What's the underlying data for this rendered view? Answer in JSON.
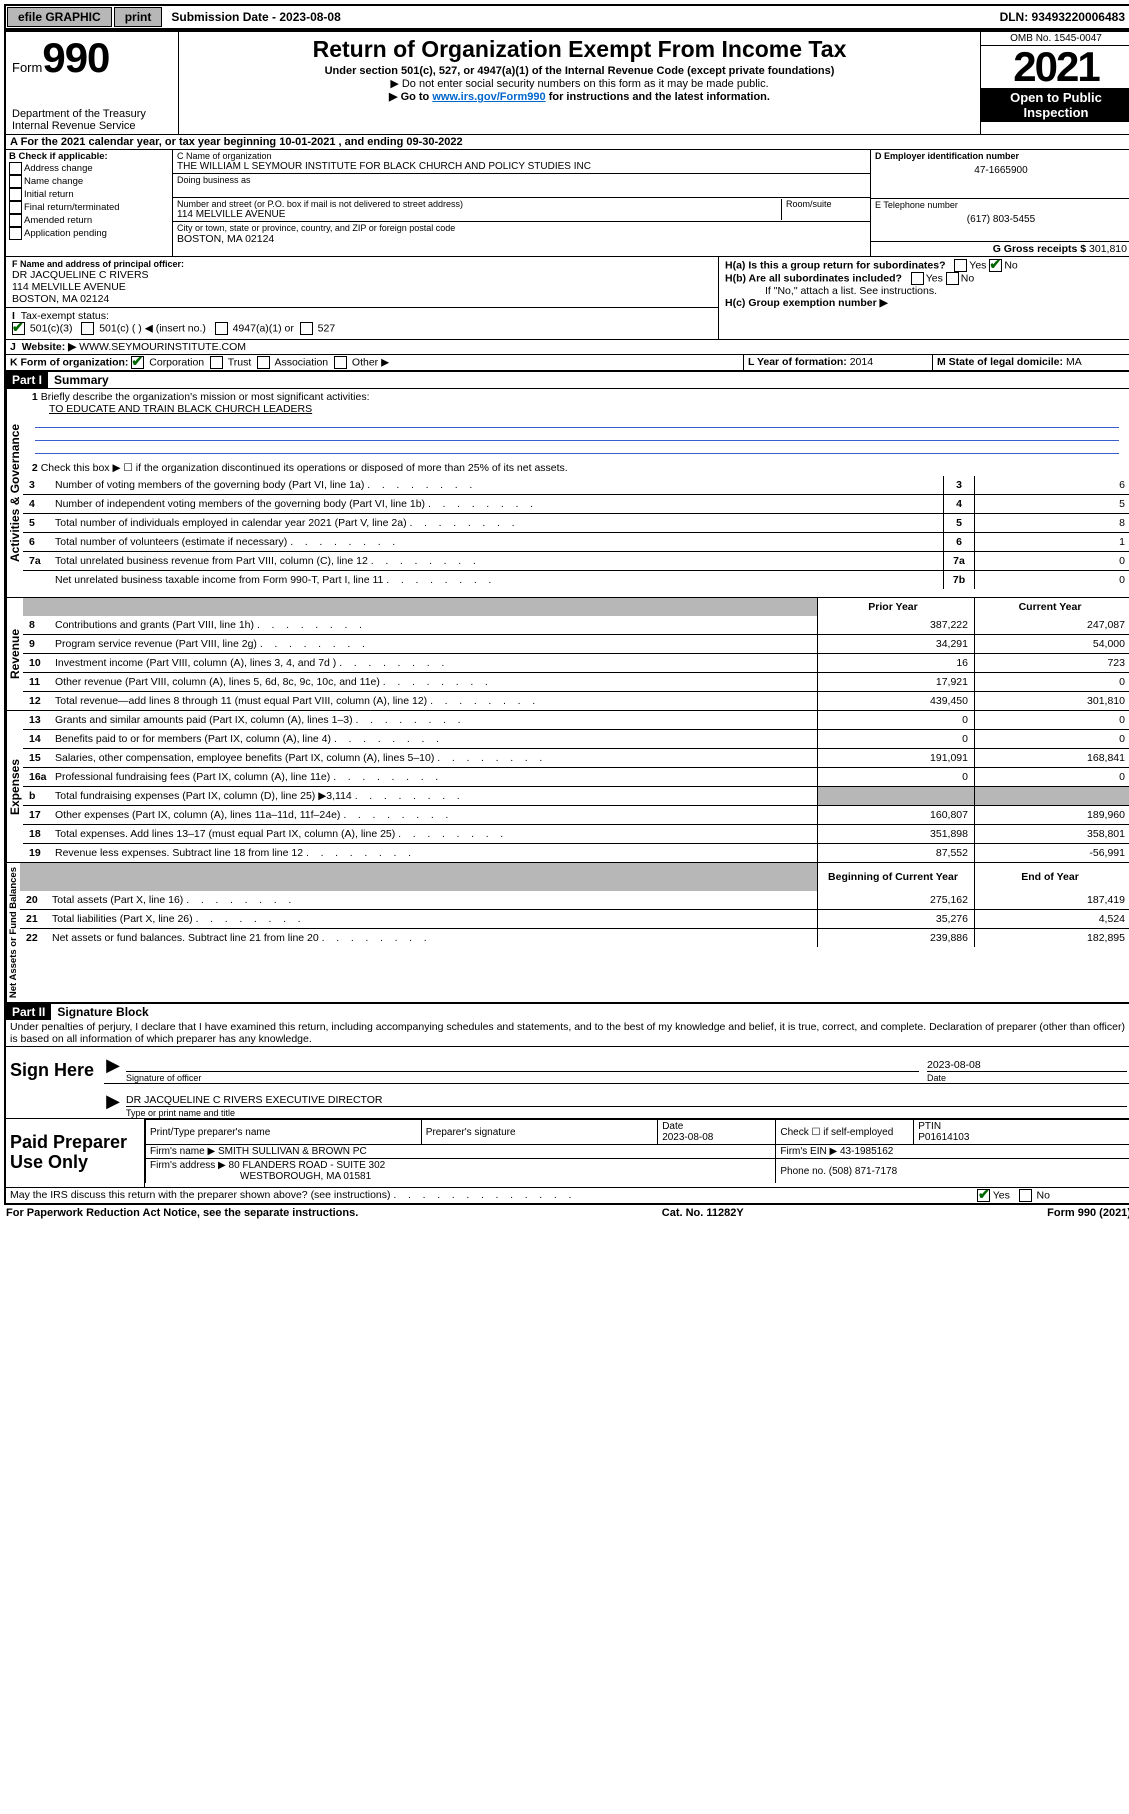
{
  "topbar": {
    "efile": "efile GRAPHIC",
    "print": "print",
    "sub_date_label": "Submission Date - 2023-08-08",
    "dln": "DLN: 93493220006483"
  },
  "header": {
    "form_label": "Form",
    "form_number": "990",
    "dept": "Department of the Treasury",
    "irs": "Internal Revenue Service",
    "title": "Return of Organization Exempt From Income Tax",
    "subtitle": "Under section 501(c), 527, or 4947(a)(1) of the Internal Revenue Code (except private foundations)",
    "note1": "▶ Do not enter social security numbers on this form as it may be made public.",
    "note2_pre": "▶ Go to ",
    "note2_link": "www.irs.gov/Form990",
    "note2_post": " for instructions and the latest information.",
    "omb": "OMB No. 1545-0047",
    "year": "2021",
    "open": "Open to Public Inspection"
  },
  "line_a": "For the 2021 calendar year, or tax year beginning 10-01-2021    , and ending 09-30-2022",
  "box_b": {
    "heading": "B Check if applicable:",
    "items": [
      "Address change",
      "Name change",
      "Initial return",
      "Final return/terminated",
      "Amended return",
      "Application pending"
    ]
  },
  "box_c": {
    "name_label": "C Name of organization",
    "name": "THE WILLIAM L SEYMOUR INSTITUTE FOR BLACK CHURCH AND POLICY STUDIES INC",
    "dba_label": "Doing business as",
    "addr_label": "Number and street (or P.O. box if mail is not delivered to street address)",
    "room_label": "Room/suite",
    "addr": "114 MELVILLE AVENUE",
    "city_label": "City or town, state or province, country, and ZIP or foreign postal code",
    "city": "BOSTON, MA  02124"
  },
  "box_d": {
    "label": "D Employer identification number",
    "value": "47-1665900"
  },
  "box_e": {
    "label": "E Telephone number",
    "value": "(617) 803-5455"
  },
  "box_g": {
    "label": "G Gross receipts $",
    "value": "301,810"
  },
  "box_f": {
    "label": "F Name and address of principal officer:",
    "name": "DR JACQUELINE C RIVERS",
    "addr1": "114 MELVILLE AVENUE",
    "addr2": "BOSTON, MA  02124"
  },
  "box_h": {
    "a": "H(a)  Is this a group return for subordinates?",
    "b": "H(b)  Are all subordinates included?",
    "note": "If \"No,\" attach a list. See instructions.",
    "c": "H(c)  Group exemption number ▶"
  },
  "line_i": {
    "label": "Tax-exempt status:",
    "opts": [
      "501(c)(3)",
      "501(c) (  ) ◀ (insert no.)",
      "4947(a)(1) or",
      "527"
    ]
  },
  "line_j": {
    "label": "Website: ▶",
    "value": "WWW.SEYMOURINSTITUTE.COM"
  },
  "line_k": {
    "label": "K Form of organization:",
    "opts": [
      "Corporation",
      "Trust",
      "Association",
      "Other ▶"
    ]
  },
  "line_l": {
    "label": "L Year of formation:",
    "value": "2014"
  },
  "line_m": {
    "label": "M State of legal domicile:",
    "value": "MA"
  },
  "part1": {
    "label": "Part I",
    "title": "Summary"
  },
  "summary": {
    "q1": "Briefly describe the organization's mission or most significant activities:",
    "q1_ans": "TO EDUCATE AND TRAIN BLACK CHURCH LEADERS",
    "q2": "Check this box ▶ ☐  if the organization discontinued its operations or disposed of more than 25% of its net assets.",
    "rows_gov": [
      {
        "n": "3",
        "d": "Number of voting members of the governing body (Part VI, line 1a)",
        "b": "3",
        "v": "6"
      },
      {
        "n": "4",
        "d": "Number of independent voting members of the governing body (Part VI, line 1b)",
        "b": "4",
        "v": "5"
      },
      {
        "n": "5",
        "d": "Total number of individuals employed in calendar year 2021 (Part V, line 2a)",
        "b": "5",
        "v": "8"
      },
      {
        "n": "6",
        "d": "Total number of volunteers (estimate if necessary)",
        "b": "6",
        "v": "1"
      },
      {
        "n": "7a",
        "d": "Total unrelated business revenue from Part VIII, column (C), line 12",
        "b": "7a",
        "v": "0"
      },
      {
        "n": "",
        "d": "Net unrelated business taxable income from Form 990-T, Part I, line 11",
        "b": "7b",
        "v": "0"
      }
    ],
    "header_prior": "Prior Year",
    "header_current": "Current Year",
    "rows_rev": [
      {
        "n": "8",
        "d": "Contributions and grants (Part VIII, line 1h)",
        "p": "387,222",
        "c": "247,087"
      },
      {
        "n": "9",
        "d": "Program service revenue (Part VIII, line 2g)",
        "p": "34,291",
        "c": "54,000"
      },
      {
        "n": "10",
        "d": "Investment income (Part VIII, column (A), lines 3, 4, and 7d )",
        "p": "16",
        "c": "723"
      },
      {
        "n": "11",
        "d": "Other revenue (Part VIII, column (A), lines 5, 6d, 8c, 9c, 10c, and 11e)",
        "p": "17,921",
        "c": "0"
      },
      {
        "n": "12",
        "d": "Total revenue—add lines 8 through 11 (must equal Part VIII, column (A), line 12)",
        "p": "439,450",
        "c": "301,810"
      }
    ],
    "rows_exp": [
      {
        "n": "13",
        "d": "Grants and similar amounts paid (Part IX, column (A), lines 1–3)",
        "p": "0",
        "c": "0"
      },
      {
        "n": "14",
        "d": "Benefits paid to or for members (Part IX, column (A), line 4)",
        "p": "0",
        "c": "0"
      },
      {
        "n": "15",
        "d": "Salaries, other compensation, employee benefits (Part IX, column (A), lines 5–10)",
        "p": "191,091",
        "c": "168,841"
      },
      {
        "n": "16a",
        "d": "Professional fundraising fees (Part IX, column (A), line 11e)",
        "p": "0",
        "c": "0"
      },
      {
        "n": "b",
        "d": "Total fundraising expenses (Part IX, column (D), line 25) ▶3,114",
        "p": "",
        "c": "",
        "shaded": true
      },
      {
        "n": "17",
        "d": "Other expenses (Part IX, column (A), lines 11a–11d, 11f–24e)",
        "p": "160,807",
        "c": "189,960"
      },
      {
        "n": "18",
        "d": "Total expenses. Add lines 13–17 (must equal Part IX, column (A), line 25)",
        "p": "351,898",
        "c": "358,801"
      },
      {
        "n": "19",
        "d": "Revenue less expenses. Subtract line 18 from line 12",
        "p": "87,552",
        "c": "-56,991"
      }
    ],
    "header_begin": "Beginning of Current Year",
    "header_end": "End of Year",
    "rows_net": [
      {
        "n": "20",
        "d": "Total assets (Part X, line 16)",
        "p": "275,162",
        "c": "187,419"
      },
      {
        "n": "21",
        "d": "Total liabilities (Part X, line 26)",
        "p": "35,276",
        "c": "4,524"
      },
      {
        "n": "22",
        "d": "Net assets or fund balances. Subtract line 21 from line 20",
        "p": "239,886",
        "c": "182,895"
      }
    ]
  },
  "vert": {
    "gov": "Activities & Governance",
    "rev": "Revenue",
    "exp": "Expenses",
    "net": "Net Assets or Fund Balances"
  },
  "part2": {
    "label": "Part II",
    "title": "Signature Block"
  },
  "penalty": "Under penalties of perjury, I declare that I have examined this return, including accompanying schedules and statements, and to the best of my knowledge and belief, it is true, correct, and complete. Declaration of preparer (other than officer) is based on all information of which preparer has any knowledge.",
  "sign": {
    "here": "Sign Here",
    "sig_officer": "Signature of officer",
    "date": "Date",
    "date_val": "2023-08-08",
    "name": "DR JACQUELINE C RIVERS  EXECUTIVE DIRECTOR",
    "name_label": "Type or print name and title"
  },
  "paid": {
    "label": "Paid Preparer Use Only",
    "h_name": "Print/Type preparer's name",
    "h_sig": "Preparer's signature",
    "h_date": "Date",
    "date_val": "2023-08-08",
    "h_check": "Check ☐ if self-employed",
    "h_ptin": "PTIN",
    "ptin": "P01614103",
    "firm_name_l": "Firm's name    ▶",
    "firm_name": "SMITH SULLIVAN & BROWN PC",
    "firm_ein_l": "Firm's EIN ▶",
    "firm_ein": "43-1985162",
    "firm_addr_l": "Firm's address ▶",
    "firm_addr1": "80 FLANDERS ROAD - SUITE 302",
    "firm_addr2": "WESTBOROUGH, MA  01581",
    "phone_l": "Phone no.",
    "phone": "(508) 871-7178"
  },
  "may_irs": "May the IRS discuss this return with the preparer shown above? (see instructions)",
  "footer": {
    "left": "For Paperwork Reduction Act Notice, see the separate instructions.",
    "mid": "Cat. No. 11282Y",
    "right": "Form 990 (2021)"
  },
  "colors": {
    "link": "#0066cc",
    "check": "#006600",
    "shade": "#b7b7b7",
    "blue_line": "#3a5fcd"
  }
}
